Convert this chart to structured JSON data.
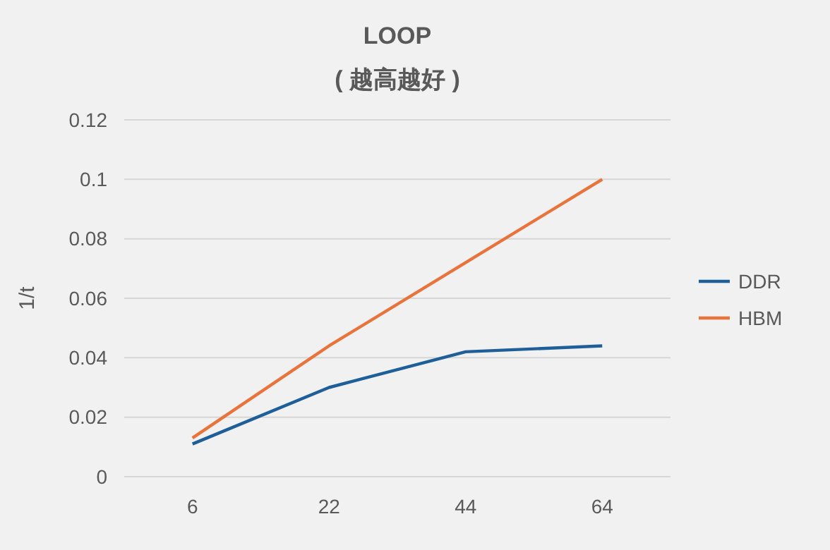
{
  "chart_data": {
    "type": "line",
    "title": "LOOP",
    "subtitle": "( 越高越好 )",
    "ylabel": "1/t",
    "categories": [
      "6",
      "22",
      "44",
      "64"
    ],
    "series": [
      {
        "name": "DDR",
        "color": "#1f5f99",
        "values": [
          0.011,
          0.03,
          0.042,
          0.044
        ]
      },
      {
        "name": "HBM",
        "color": "#e8743b",
        "values": [
          0.013,
          0.044,
          0.072,
          0.1
        ]
      }
    ],
    "ylim": [
      0,
      0.12
    ],
    "yticks": [
      0,
      0.02,
      0.04,
      0.06,
      0.08,
      0.1,
      0.12
    ],
    "grid": "y",
    "legend": "right",
    "marker": "none",
    "line_style": "solid"
  }
}
